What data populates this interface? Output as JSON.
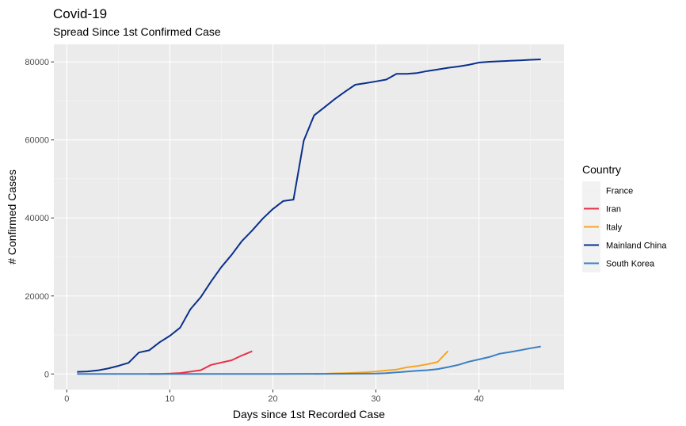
{
  "chart_data": {
    "type": "line",
    "title": "Covid-19",
    "subtitle": "Spread Since 1st Confirmed Case",
    "xlabel": "Days since 1st Recorded Case",
    "ylabel": "# Confirmed Cases",
    "xlim": [
      -1.25,
      48.25
    ],
    "ylim": [
      -4000,
      84500
    ],
    "x_ticks": [
      0,
      10,
      20,
      30,
      40
    ],
    "y_ticks": [
      0,
      20000,
      40000,
      60000,
      80000
    ],
    "grid": true,
    "legend": {
      "title": "Country",
      "position": "right"
    },
    "series": [
      {
        "name": "France",
        "color": "#f0f0f0",
        "x": [
          1,
          5,
          10,
          15,
          20,
          25,
          30,
          35,
          37
        ],
        "y": [
          2,
          6,
          6,
          12,
          12,
          12,
          12,
          12,
          12
        ]
      },
      {
        "name": "Iran",
        "color": "#e8334a",
        "x": [
          8,
          9,
          10,
          11,
          12,
          13,
          14,
          15,
          16,
          17,
          18
        ],
        "y": [
          2,
          28,
          95,
          245,
          593,
          978,
          2336,
          2922,
          3513,
          4747,
          5823
        ]
      },
      {
        "name": "Italy",
        "color": "#f5a623",
        "x": [
          24,
          25,
          26,
          27,
          28,
          29,
          30,
          31,
          32,
          33,
          34,
          35,
          36,
          37
        ],
        "y": [
          20,
          62,
          155,
          229,
          322,
          453,
          655,
          888,
          1128,
          1694,
          2036,
          2502,
          3089,
          5883
        ]
      },
      {
        "name": "Mainland China",
        "color": "#0a2f8c",
        "x": [
          1,
          2,
          3,
          4,
          5,
          6,
          7,
          8,
          9,
          10,
          11,
          12,
          13,
          14,
          15,
          16,
          17,
          18,
          19,
          20,
          21,
          22,
          23,
          24,
          25,
          26,
          27,
          28,
          29,
          30,
          31,
          32,
          33,
          34,
          35,
          36,
          37,
          38,
          39,
          40,
          41,
          42,
          43,
          44,
          45,
          46
        ],
        "y": [
          547,
          639,
          916,
          1399,
          2062,
          2863,
          5494,
          6070,
          8124,
          9783,
          11871,
          16607,
          19693,
          23680,
          27409,
          30553,
          34075,
          36778,
          39790,
          42306,
          44327,
          44699,
          59832,
          66292,
          68347,
          70446,
          72364,
          74139,
          74546,
          74999,
          75472,
          76922,
          76938,
          77152,
          77660,
          78065,
          78498,
          78824,
          79251,
          79826,
          80026,
          80151,
          80270,
          80409,
          80552,
          80651
        ]
      },
      {
        "name": "South Korea",
        "color": "#3a7fc4",
        "x": [
          1,
          5,
          10,
          15,
          20,
          25,
          30,
          31,
          32,
          33,
          34,
          35,
          36,
          37,
          38,
          39,
          40,
          41,
          42,
          43,
          44,
          45,
          46
        ],
        "y": [
          1,
          4,
          12,
          24,
          28,
          31,
          104,
          204,
          433,
          602,
          833,
          977,
          1261,
          1766,
          2337,
          3150,
          3736,
          4335,
          5186,
          5621,
          6088,
          6593,
          7041
        ]
      }
    ]
  }
}
